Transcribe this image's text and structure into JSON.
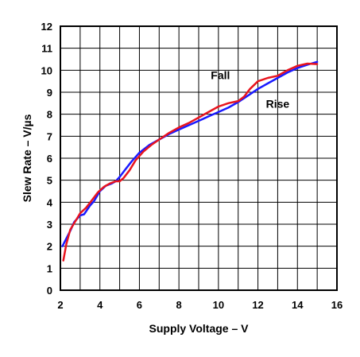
{
  "chart_data": {
    "type": "line",
    "title": "",
    "xlabel": "Supply Voltage – V",
    "ylabel": "Slew Rate – V/µs",
    "xlim": [
      2,
      16
    ],
    "ylim": [
      0,
      12
    ],
    "xticks": [
      2,
      4,
      6,
      8,
      10,
      12,
      14,
      16
    ],
    "yticks": [
      0,
      1,
      2,
      3,
      4,
      5,
      6,
      7,
      8,
      9,
      10,
      11,
      12
    ],
    "grid": true,
    "legend": "none",
    "series": [
      {
        "name": "Rise",
        "color": "#1a1aff",
        "x": [
          2.1,
          2.3,
          2.5,
          2.7,
          3.0,
          3.2,
          3.5,
          3.7,
          4.0,
          4.3,
          4.6,
          4.8,
          5.0,
          5.3,
          5.6,
          6.0,
          6.5,
          7.0,
          7.5,
          8.0,
          8.5,
          9.0,
          9.5,
          10.0,
          10.5,
          11.0,
          11.5,
          12.0,
          12.5,
          13.0,
          13.5,
          14.0,
          14.5,
          15.0
        ],
        "y": [
          2.0,
          2.35,
          2.7,
          3.1,
          3.4,
          3.45,
          3.85,
          4.05,
          4.5,
          4.75,
          4.85,
          4.95,
          5.15,
          5.5,
          5.85,
          6.25,
          6.6,
          6.85,
          7.1,
          7.3,
          7.5,
          7.7,
          7.9,
          8.1,
          8.3,
          8.55,
          8.85,
          9.15,
          9.4,
          9.65,
          9.9,
          10.1,
          10.25,
          10.38
        ]
      },
      {
        "name": "Fall",
        "color": "#e8141e",
        "x": [
          2.15,
          2.3,
          2.5,
          2.8,
          3.0,
          3.3,
          3.6,
          3.9,
          4.2,
          4.5,
          4.8,
          5.0,
          5.2,
          5.5,
          5.8,
          6.2,
          6.6,
          7.0,
          7.5,
          8.0,
          8.5,
          9.0,
          9.5,
          10.0,
          10.5,
          11.0,
          11.3,
          11.6,
          12.0,
          12.5,
          13.0,
          13.5,
          14.0,
          14.5,
          15.0
        ],
        "y": [
          1.35,
          2.1,
          2.75,
          3.2,
          3.5,
          3.75,
          4.1,
          4.45,
          4.7,
          4.85,
          4.95,
          4.95,
          5.1,
          5.45,
          5.9,
          6.3,
          6.6,
          6.85,
          7.15,
          7.4,
          7.6,
          7.85,
          8.1,
          8.35,
          8.5,
          8.6,
          8.8,
          9.15,
          9.5,
          9.65,
          9.75,
          10.0,
          10.2,
          10.3,
          10.28
        ]
      }
    ],
    "annotations": [
      {
        "text": "Fall",
        "x": 10.1,
        "y": 9.6
      },
      {
        "text": "Rise",
        "x": 13.0,
        "y": 8.3
      }
    ]
  }
}
